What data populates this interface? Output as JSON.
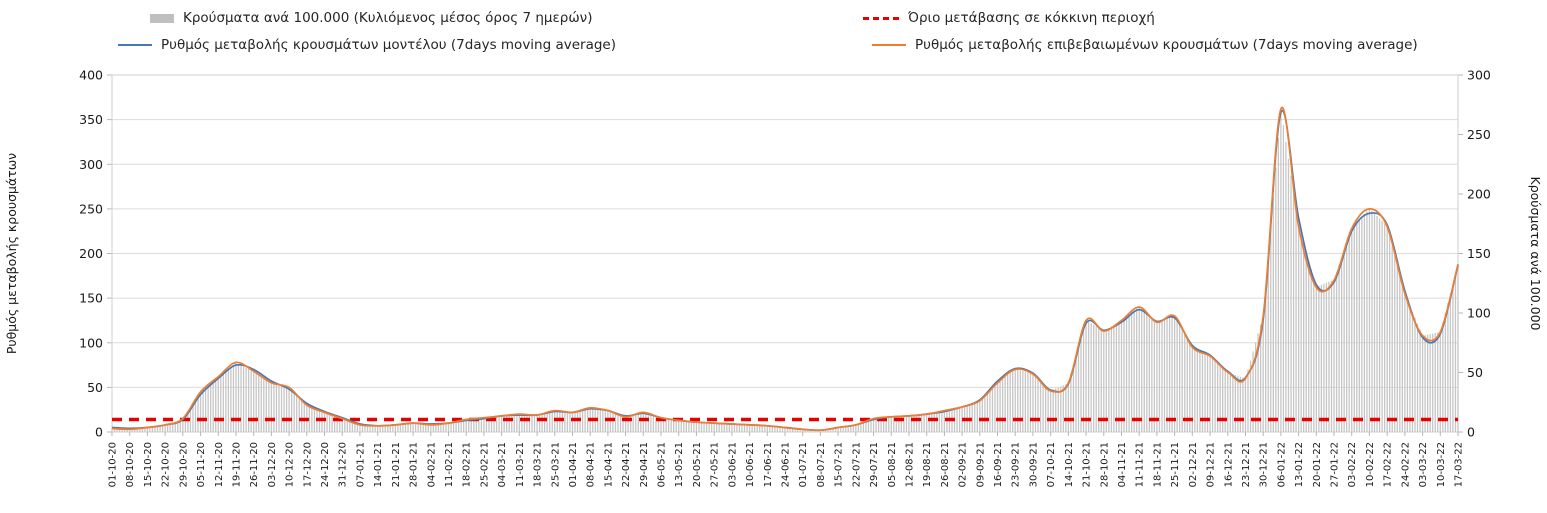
{
  "legend": {
    "bars_label": "Κρούσματα ανά 100.000 (Κυλιόμενος μέσος όρος 7 ημερών)",
    "threshold_label": "Όριο μετάβασης σε κόκκινη περιοχή",
    "model_label": "Ρυθμός μεταβολής κρουσμάτων μοντέλου (7days moving average)",
    "confirmed_label": "Ρυθμός μεταβολής επιβεβαιωμένων κρουσμάτων (7days moving average)"
  },
  "axes": {
    "left_title": "Ρυθμός μεταβολής κρουσμάτων",
    "right_title": "Κρούσματα ανά 100.000",
    "left_ticks": [
      0,
      50,
      100,
      150,
      200,
      250,
      300,
      350,
      400
    ],
    "right_ticks": [
      0,
      50,
      100,
      150,
      200,
      250,
      300
    ]
  },
  "colors": {
    "bar": "#c6c6c6",
    "model_line": "#4778b4",
    "confirmed_line": "#ed7d31",
    "threshold": "#e60000",
    "grid": "#dcdcdc",
    "axis": "#b7b7b7",
    "text": "#333333"
  },
  "chart_data": {
    "type": "combo-bar-line",
    "title": "",
    "xlabel": "",
    "left_ylabel": "Ρυθμός μεταβολής κρουσμάτων",
    "right_ylabel": "Κρούσματα ανά 100.000",
    "left_ylim": [
      0,
      400
    ],
    "right_ylim": [
      0,
      300
    ],
    "grid": true,
    "legend_position": "top",
    "x": [
      "01-10-20",
      "08-10-20",
      "15-10-20",
      "22-10-20",
      "29-10-20",
      "05-11-20",
      "12-11-20",
      "19-11-20",
      "26-11-20",
      "03-12-20",
      "10-12-20",
      "17-12-20",
      "24-12-20",
      "31-12-20",
      "07-01-21",
      "14-01-21",
      "21-01-21",
      "28-01-21",
      "04-02-21",
      "11-02-21",
      "18-02-21",
      "25-02-21",
      "04-03-21",
      "11-03-21",
      "18-03-21",
      "25-03-21",
      "01-04-21",
      "08-04-21",
      "15-04-21",
      "22-04-21",
      "29-04-21",
      "06-05-21",
      "13-05-21",
      "20-05-21",
      "27-05-21",
      "03-06-21",
      "10-06-21",
      "17-06-21",
      "24-06-21",
      "01-07-21",
      "08-07-21",
      "15-07-21",
      "22-07-21",
      "29-07-21",
      "05-08-21",
      "12-08-21",
      "19-08-21",
      "26-08-21",
      "02-09-21",
      "09-09-21",
      "16-09-21",
      "23-09-21",
      "30-09-21",
      "07-10-21",
      "14-10-21",
      "21-10-21",
      "28-10-21",
      "04-11-21",
      "11-11-21",
      "18-11-21",
      "25-11-21",
      "02-12-21",
      "09-12-21",
      "16-12-21",
      "23-12-21",
      "30-12-21",
      "06-01-22",
      "13-01-22",
      "20-01-22",
      "27-01-22",
      "03-02-22",
      "10-02-22",
      "17-02-22",
      "24-02-22",
      "03-03-22",
      "10-03-22",
      "17-03-22"
    ],
    "series": [
      {
        "name": "Κρούσματα ανά 100.000 (Κυλιόμενος μέσος όρος 7 ημερών)",
        "type": "bar",
        "axis": "right",
        "values": [
          3,
          2,
          4,
          6,
          11,
          34,
          47,
          58,
          51,
          41,
          38,
          23,
          17,
          11,
          6,
          5,
          6,
          8,
          6,
          8,
          11,
          12,
          14,
          15,
          14,
          18,
          17,
          20,
          18,
          13,
          17,
          12,
          10,
          8,
          8,
          7,
          6,
          5,
          4,
          2,
          2,
          4,
          6,
          11,
          13,
          14,
          15,
          18,
          21,
          26,
          41,
          53,
          49,
          35,
          41,
          94,
          85,
          94,
          105,
          92,
          98,
          71,
          64,
          50,
          45,
          98,
          272,
          173,
          122,
          128,
          171,
          188,
          173,
          116,
          81,
          84,
          141
        ]
      },
      {
        "name": "Ρυθμός μεταβολής κρουσμάτων μοντέλου (7days moving average)",
        "type": "line",
        "axis": "left",
        "values": [
          5,
          4,
          5,
          8,
          14,
          42,
          60,
          75,
          70,
          57,
          48,
          32,
          23,
          16,
          9,
          7,
          8,
          10,
          9,
          10,
          13,
          15,
          18,
          19,
          19,
          23,
          22,
          26,
          24,
          18,
          21,
          16,
          13,
          11,
          10,
          9,
          8,
          7,
          5,
          3,
          2,
          5,
          8,
          14,
          17,
          18,
          20,
          23,
          28,
          36,
          57,
          71,
          66,
          47,
          54,
          122,
          114,
          123,
          137,
          124,
          128,
          97,
          86,
          68,
          61,
          126,
          358,
          240,
          165,
          168,
          225,
          245,
          232,
          158,
          106,
          110,
          187
        ]
      },
      {
        "name": "Ρυθμός μεταβολής επιβεβαιωμένων κρουσμάτων (7days moving average)",
        "type": "line",
        "axis": "left",
        "values": [
          4,
          3,
          5,
          8,
          15,
          45,
          62,
          78,
          68,
          55,
          50,
          30,
          22,
          15,
          8,
          7,
          8,
          10,
          8,
          10,
          14,
          16,
          18,
          20,
          19,
          24,
          22,
          27,
          24,
          17,
          22,
          16,
          13,
          11,
          10,
          9,
          8,
          7,
          5,
          3,
          2,
          5,
          8,
          15,
          17,
          18,
          20,
          24,
          28,
          35,
          55,
          70,
          65,
          46,
          55,
          125,
          113,
          125,
          140,
          123,
          130,
          95,
          85,
          67,
          60,
          130,
          362,
          230,
          162,
          170,
          228,
          250,
          230,
          155,
          108,
          112,
          188
        ]
      },
      {
        "name": "Όριο μετάβασης σε κόκκινη περιοχή",
        "type": "threshold",
        "axis": "left",
        "value": 14
      }
    ]
  }
}
